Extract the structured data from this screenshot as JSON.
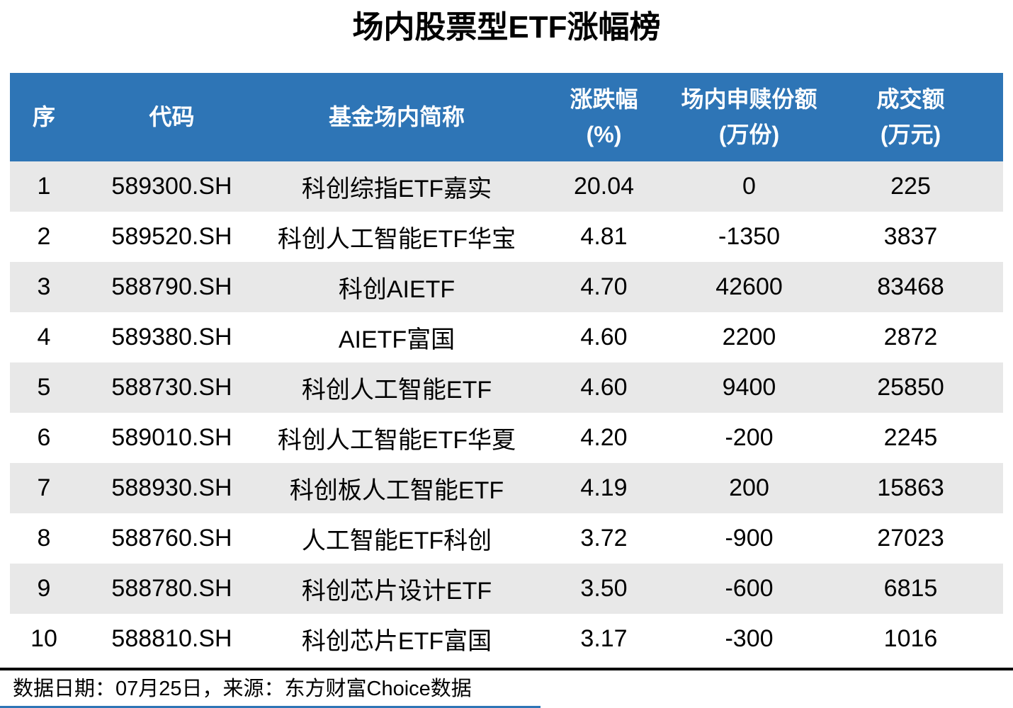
{
  "title": "场内股票型ETF涨幅榜",
  "chart_data": {
    "type": "table",
    "title": "场内股票型ETF涨幅榜",
    "columns": [
      {
        "label": "序",
        "unit": ""
      },
      {
        "label": "代码",
        "unit": ""
      },
      {
        "label": "基金场内简称",
        "unit": ""
      },
      {
        "label": "涨跌幅",
        "unit": "(%)"
      },
      {
        "label": "场内申赎份额",
        "unit": "(万份)"
      },
      {
        "label": "成交额",
        "unit": "(万元)"
      }
    ],
    "rows": [
      [
        "1",
        "589300.SH",
        "科创综指ETF嘉实",
        "20.04",
        "0",
        "225"
      ],
      [
        "2",
        "589520.SH",
        "科创人工智能ETF华宝",
        "4.81",
        "-1350",
        "3837"
      ],
      [
        "3",
        "588790.SH",
        "科创AIETF",
        "4.70",
        "42600",
        "83468"
      ],
      [
        "4",
        "589380.SH",
        "AIETF富国",
        "4.60",
        "2200",
        "2872"
      ],
      [
        "5",
        "588730.SH",
        "科创人工智能ETF",
        "4.60",
        "9400",
        "25850"
      ],
      [
        "6",
        "589010.SH",
        "科创人工智能ETF华夏",
        "4.20",
        "-200",
        "2245"
      ],
      [
        "7",
        "588930.SH",
        "科创板人工智能ETF",
        "4.19",
        "200",
        "15863"
      ],
      [
        "8",
        "588760.SH",
        "人工智能ETF科创",
        "3.72",
        "-900",
        "27023"
      ],
      [
        "9",
        "588780.SH",
        "科创芯片设计ETF",
        "3.50",
        "-600",
        "6815"
      ],
      [
        "10",
        "588810.SH",
        "科创芯片ETF富国",
        "3.17",
        "-300",
        "1016"
      ]
    ]
  },
  "footer": {
    "note": "数据日期：07月25日，来源：东方财富Choice数据"
  },
  "colors": {
    "header_bg": "#2E75B6",
    "header_text": "#FFFFFF",
    "row_bg": "#FFFFFF",
    "row_alt_bg": "#E8E8E8",
    "text_color": "#000000",
    "divider_color": "#000000",
    "accent_line": "#2E75B6"
  }
}
